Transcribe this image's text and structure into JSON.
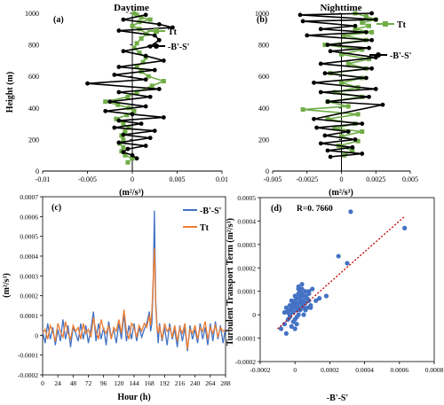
{
  "colors": {
    "tt_green": "#70AD47",
    "bs_black": "#000000",
    "bs_blue": "#4472C4",
    "tt_orange": "#ED7D31",
    "scatter_blue": "#4472C4",
    "fit_red": "#C00000"
  },
  "chart_data": [
    {
      "id": "a",
      "type": "line",
      "panel_label": "(a)",
      "title": "Daytime",
      "xlabel": "(m²/s³)",
      "ylabel": "Height (m)",
      "xlim": [
        -0.01,
        0.01
      ],
      "ylim": [
        0,
        1000
      ],
      "xticks": [
        "-0.01",
        "-0.005",
        "0",
        "0.005",
        "0.01"
      ],
      "xtick_values": [
        -0.01,
        -0.005,
        0,
        0.005,
        0.01
      ],
      "yticks": [
        "0",
        "200",
        "400",
        "600",
        "800",
        "1000"
      ],
      "ytick_values": [
        0,
        200,
        400,
        600,
        800,
        1000
      ],
      "legend_position": "top-right",
      "series": [
        {
          "name": "Tt",
          "marker": "square",
          "x": [
            -0.0005,
            0.0,
            -0.0008,
            -0.0012,
            -0.001,
            -0.0014,
            -0.001,
            -0.0012,
            -0.0008,
            -0.0004,
            -0.001,
            -0.0018,
            -0.0006,
            0.0002,
            -0.0004,
            -0.0016,
            -0.003,
            -0.0005,
            0.0005,
            0.0022,
            0.0035,
            0.0018,
            0.001,
            0.0005,
            0.0012,
            0.0015,
            0.0008,
            0.0002,
            0.0005,
            0.001,
            0.0016,
            0.0008,
            0.0,
            0.0008,
            0.002,
            0.001,
            0.0005,
            0.0002
          ],
          "y": [
            55,
            80,
            100,
            125,
            150,
            175,
            200,
            225,
            250,
            275,
            300,
            330,
            355,
            380,
            400,
            420,
            440,
            470,
            500,
            540,
            570,
            600,
            630,
            660,
            690,
            720,
            750,
            780,
            810,
            840,
            870,
            900,
            920,
            945,
            960,
            975,
            990,
            1000
          ]
        },
        {
          "name": "-B'-S'",
          "marker": "circle",
          "x": [
            0.0005,
            0.0,
            -0.001,
            -0.0005,
            0.0015,
            -0.0015,
            0.002,
            -0.001,
            0.0025,
            -0.002,
            0.001,
            -0.0015,
            0.0035,
            0.0,
            -0.003,
            0.0015,
            -0.0025,
            0.002,
            -0.0015,
            0.003,
            -0.005,
            0.0015,
            -0.002,
            0.0025,
            -0.0015,
            0.0035,
            0.0015,
            -0.001,
            0.002,
            0.003,
            0.0025,
            -0.0015,
            0.0045,
            0.003,
            -0.001,
            0.0015
          ],
          "y": [
            80,
            100,
            120,
            140,
            160,
            180,
            210,
            230,
            255,
            275,
            300,
            320,
            340,
            360,
            380,
            410,
            440,
            470,
            500,
            520,
            555,
            580,
            610,
            640,
            660,
            700,
            730,
            760,
            790,
            830,
            860,
            890,
            910,
            930,
            960,
            990
          ]
        }
      ]
    },
    {
      "id": "b",
      "type": "line",
      "panel_label": "(b)",
      "title": "Nighttime",
      "xlabel": "(m²/s³)",
      "ylabel": "",
      "xlim": [
        -0.005,
        0.005
      ],
      "ylim": [
        0,
        1000
      ],
      "xticks": [
        "-0.005",
        "-0.0025",
        "0",
        "0.0025",
        "0.005"
      ],
      "xtick_values": [
        -0.005,
        -0.0025,
        0,
        0.0025,
        0.005
      ],
      "yticks": [
        "0",
        "200",
        "400",
        "600",
        "800",
        "1000"
      ],
      "ytick_values": [
        0,
        200,
        400,
        600,
        800,
        1000
      ],
      "legend_position": "top-right",
      "series": [
        {
          "name": "Tt",
          "marker": "square",
          "x": [
            0.0002,
            0.0008,
            -0.0002,
            0.0012,
            0.0,
            0.0015,
            -0.0005,
            0.001,
            -0.001,
            0.0012,
            -0.0028,
            0.0005,
            -0.001,
            0.0015,
            -0.0005,
            0.0012,
            0.0,
            0.0015,
            -0.0008,
            0.0018,
            0.0005,
            0.002,
            0.0,
            0.0015,
            -0.0012,
            0.0018,
            0.0002,
            0.0022,
            0.001,
            0.002,
            0.0015,
            0.0025,
            0.0018,
            0.001
          ],
          "y": [
            100,
            130,
            160,
            190,
            220,
            250,
            270,
            300,
            330,
            360,
            390,
            410,
            440,
            470,
            500,
            530,
            560,
            590,
            620,
            650,
            680,
            710,
            740,
            770,
            800,
            830,
            860,
            880,
            900,
            920,
            940,
            960,
            980,
            1000
          ]
        },
        {
          "name": "-B'-S'",
          "marker": "circle",
          "x": [
            -0.0008,
            0.0015,
            -0.001,
            0.0008,
            -0.0015,
            0.001,
            -0.0012,
            0.0005,
            -0.0018,
            0.0015,
            -0.002,
            0.003,
            -0.001,
            0.002,
            -0.0015,
            0.0025,
            -0.002,
            0.0018,
            -0.0012,
            0.0022,
            -0.0015,
            0.0025,
            -0.0008,
            0.002,
            -0.001,
            0.0022,
            -0.0025,
            0.0018,
            -0.0015,
            0.001,
            -0.0028,
            0.0025,
            -0.003,
            0.0022
          ],
          "y": [
            90,
            110,
            130,
            150,
            175,
            200,
            225,
            250,
            275,
            300,
            330,
            420,
            440,
            470,
            500,
            520,
            560,
            590,
            620,
            650,
            680,
            720,
            760,
            780,
            800,
            830,
            860,
            880,
            900,
            920,
            950,
            960,
            990,
            1000
          ]
        }
      ]
    },
    {
      "id": "c",
      "type": "line",
      "panel_label": "(c)",
      "title": "",
      "xlabel": "Hour (h)",
      "ylabel": "(m²/s³)",
      "xlim": [
        0,
        288
      ],
      "ylim": [
        -0.0002,
        0.0007
      ],
      "xticks": [
        "0",
        "24",
        "48",
        "72",
        "96",
        "120",
        "144",
        "168",
        "192",
        "216",
        "240",
        "264",
        "288"
      ],
      "xtick_values": [
        0,
        24,
        48,
        72,
        96,
        120,
        144,
        168,
        192,
        216,
        240,
        264,
        288
      ],
      "yticks": [
        "-0.0002",
        "-0.0001",
        "0",
        "0.0001",
        "0.0002",
        "0.0003",
        "0.0004",
        "0.0005",
        "0.0006",
        "0.0007"
      ],
      "ytick_values": [
        -0.0002,
        -0.0001,
        0,
        0.0001,
        0.0002,
        0.0003,
        0.0004,
        0.0005,
        0.0006,
        0.0007
      ],
      "legend_position": "top-right",
      "series": [
        {
          "name": "-B'-S'",
          "x": [
            0,
            4,
            8,
            12,
            16,
            20,
            24,
            28,
            32,
            36,
            40,
            44,
            48,
            52,
            56,
            60,
            64,
            68,
            72,
            76,
            80,
            84,
            88,
            92,
            96,
            100,
            104,
            108,
            112,
            116,
            120,
            124,
            128,
            132,
            136,
            140,
            144,
            148,
            152,
            156,
            160,
            164,
            168,
            170,
            172,
            174,
            176,
            178,
            180,
            182,
            184,
            188,
            192,
            196,
            200,
            204,
            208,
            212,
            216,
            220,
            224,
            228,
            232,
            236,
            240,
            244,
            248,
            252,
            256,
            260,
            264,
            268,
            272,
            276,
            280,
            284,
            288
          ],
          "y": [
            2e-05,
            -4e-05,
            6e-05,
            -2e-05,
            4e-05,
            -5e-05,
            3e-05,
            -3e-05,
            8e-05,
            -2e-05,
            5e-05,
            -6e-05,
            4e-05,
            1e-05,
            -3e-05,
            6e-05,
            -2e-05,
            5e-05,
            -4e-05,
            3e-05,
            0.00012,
            -3e-05,
            6e-05,
            -2e-05,
            4e-05,
            -5e-05,
            7e-05,
            -1e-05,
            3e-05,
            -4e-05,
            6e-05,
            -2e-05,
            0.00011,
            -3e-05,
            5e-05,
            -2e-05,
            6e-05,
            -3e-05,
            4e-05,
            -1e-05,
            3e-05,
            6e-05,
            0.00012,
            2e-05,
            6e-05,
            0.00025,
            0.00063,
            0.00018,
            5e-05,
            -4e-05,
            6e-05,
            -3e-05,
            4e-05,
            -5e-05,
            6e-05,
            -2e-05,
            3e-05,
            -6e-05,
            5e-05,
            -3e-05,
            4e-05,
            -8e-05,
            5e-05,
            -2e-05,
            3e-05,
            -4e-05,
            6e-05,
            -2e-05,
            4e-05,
            -5e-05,
            6e-05,
            -3e-05,
            7e-05,
            -2e-05,
            5e-05,
            -4e-05,
            4e-05
          ]
        },
        {
          "name": "Tt",
          "x": [
            0,
            4,
            8,
            12,
            16,
            20,
            24,
            28,
            32,
            36,
            40,
            44,
            48,
            52,
            56,
            60,
            64,
            68,
            72,
            76,
            80,
            84,
            88,
            92,
            96,
            100,
            104,
            108,
            112,
            116,
            120,
            124,
            128,
            132,
            136,
            140,
            144,
            148,
            152,
            156,
            160,
            164,
            168,
            170,
            172,
            174,
            176,
            178,
            180,
            182,
            184,
            188,
            192,
            196,
            200,
            204,
            208,
            212,
            216,
            220,
            224,
            228,
            232,
            236,
            240,
            244,
            248,
            252,
            256,
            260,
            264,
            268,
            272,
            276,
            280,
            284,
            288
          ],
          "y": [
            1e-05,
            3e-05,
            -2e-05,
            5e-05,
            2e-05,
            -3e-05,
            6e-05,
            2e-05,
            -1e-05,
            7e-05,
            1e-05,
            -2e-05,
            5e-05,
            2e-05,
            4e-05,
            -2e-05,
            6e-05,
            1e-05,
            3e-05,
            -1e-05,
            9e-05,
            2e-05,
            -2e-05,
            8e-05,
            3e-05,
            1e-05,
            5e-05,
            -2e-05,
            4e-05,
            2e-05,
            8e-05,
            1e-05,
            0.00013,
            2e-05,
            -2e-05,
            6e-05,
            4e-05,
            -1e-05,
            5e-05,
            2e-05,
            6e-05,
            4e-05,
            0.0001,
            5e-05,
            0.00012,
            0.00028,
            0.00044,
            0.00015,
            4e-05,
            1e-05,
            5e-05,
            -2e-05,
            6e-05,
            2e-05,
            4e-05,
            -1e-05,
            5e-05,
            -3e-05,
            4e-05,
            1e-05,
            6e-05,
            -7e-05,
            3e-05,
            1e-05,
            5e-05,
            -2e-05,
            4e-05,
            2e-05,
            7e-05,
            -2e-05,
            4e-05,
            1e-05,
            5e-05,
            -1e-05,
            4e-05,
            2e-05,
            3e-05
          ]
        }
      ]
    },
    {
      "id": "d",
      "type": "scatter",
      "panel_label": "(d)",
      "title": "",
      "annotation": "R=0. 7660",
      "xlabel": "-B'-S'",
      "ylabel": "Turbulent Transport Term (m²/s³)",
      "xlim": [
        -0.0002,
        0.0008
      ],
      "ylim": [
        -0.0002,
        0.0005
      ],
      "xticks": [
        "-0.0002",
        "0",
        "0.0002",
        "0.0004",
        "0.0006",
        "0.0008"
      ],
      "xtick_values": [
        -0.0002,
        0,
        0.0002,
        0.0004,
        0.0006,
        0.0008
      ],
      "yticks": [
        "-0.0002",
        "-0.0001",
        "0",
        "0.0001",
        "0.0002",
        "0.0003",
        "0.0004",
        "0.0005"
      ],
      "ytick_values": [
        -0.0002,
        -0.0001,
        0,
        0.0001,
        0.0002,
        0.0003,
        0.0004,
        0.0005
      ],
      "fit_line": {
        "x": [
          -0.0001,
          0.00063
        ],
        "y": [
          -6e-05,
          0.00042
        ]
      },
      "series": [
        {
          "name": "",
          "x": [
            -8e-05,
            -6e-05,
            -5e-05,
            -4e-05,
            -4e-05,
            -3e-05,
            -3e-05,
            -2e-05,
            -2e-05,
            -2e-05,
            -1e-05,
            -1e-05,
            -1e-05,
            0.0,
            0.0,
            0.0,
            1e-05,
            1e-05,
            1e-05,
            2e-05,
            2e-05,
            2e-05,
            3e-05,
            3e-05,
            3e-05,
            4e-05,
            4e-05,
            5e-05,
            5e-05,
            6e-05,
            6e-05,
            7e-05,
            8e-05,
            9e-05,
            0.0001,
            0.00012,
            0.00014,
            0.00018,
            0.00025,
            0.0003,
            0.00032,
            -5e-05,
            -3e-05,
            0.0,
            2e-05,
            4e-05,
            6e-05,
            8e-05,
            -2e-05,
            1e-05,
            3e-05,
            5e-05,
            7e-05,
            -4e-05,
            0.0,
            2e-05,
            4e-05,
            0.00063,
            2e-05,
            8e-05,
            -6e-05,
            3e-05,
            1e-05,
            5e-05,
            -1e-05,
            4e-05,
            6e-05,
            9e-05,
            0.0,
            2e-05
          ],
          "y": [
            -6e-05,
            -4e-05,
            3e-05,
            -2e-05,
            1e-05,
            4e-05,
            -1e-05,
            6e-05,
            2e-05,
            -5e-05,
            5e-05,
            1e-05,
            -3e-05,
            8e-05,
            3e-05,
            -2e-05,
            7e-05,
            4e-05,
            -1e-05,
            9e-05,
            5e-05,
            0.0,
            0.0001,
            6e-05,
            2e-05,
            0.00011,
            4e-05,
            8e-05,
            3e-05,
            0.0001,
            5e-05,
            7e-05,
            9e-05,
            4e-05,
            0.00011,
            6e-05,
            7e-05,
            8e-05,
            0.00025,
            0.00022,
            0.00044,
            -8e-05,
            0.0,
            5e-05,
            0.00012,
            0.00013,
            2e-05,
            6e-05,
            3e-05,
            -4e-05,
            8e-05,
            6e-05,
            3e-05,
            2e-05,
            -6e-05,
            0.00011,
            9e-05,
            0.00037,
            3e-05,
            0.0001,
            1e-05,
            7e-05,
            2e-05,
            0.0,
            4e-05,
            5e-05,
            8e-05,
            3e-05,
            6e-05,
            9e-05
          ]
        }
      ]
    }
  ]
}
